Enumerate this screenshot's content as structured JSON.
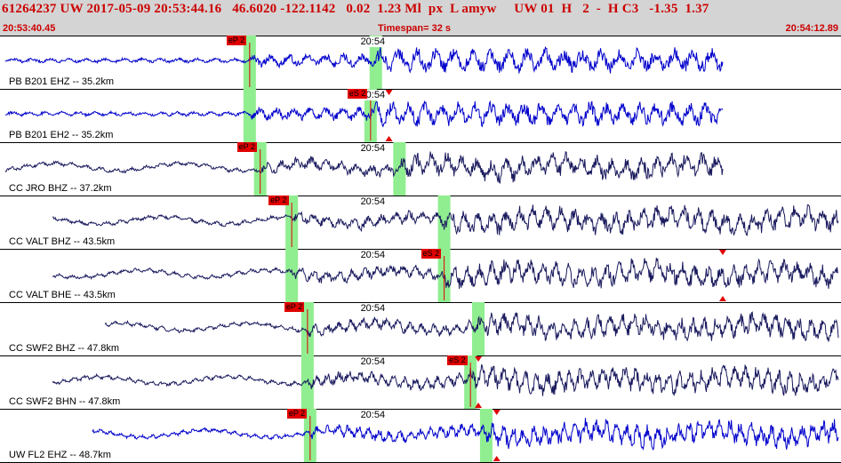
{
  "header": {
    "event_line": "61264237 UW 2017-05-09 20:53:44.16   46.6020 -122.1142   0.02  1.23 Ml  px  L amyw     UW 01  H   2  -  H C3   -1.35  1.37",
    "start_time": "20:53:40.45",
    "timespan": "Timespan=  32 s",
    "end_time": "20:54:12.89"
  },
  "colors": {
    "header_bg": "#d4d4d4",
    "header_text": "#cc0000",
    "trace_blue": "#0000cc",
    "trace_navy": "#1a1a5e",
    "pick_window": "#90ee90",
    "pick_marker": "#e00000"
  },
  "time_axis": {
    "start": "20:53:40.45",
    "end": "20:54:12.89",
    "duration_s": 32
  },
  "panels": [
    {
      "label": "PB B201 EHZ -- 35.2km",
      "tick": "20:54",
      "color": "blue",
      "picks": [
        {
          "label": "eP 2",
          "t": 9.5
        },
        {
          "label": "",
          "t": 14.3
        }
      ],
      "triangles": []
    },
    {
      "label": "PB B201 EH2 -- 35.2km",
      "tick": "20:54",
      "color": "blue",
      "picks": [
        {
          "label": "eS 2",
          "t": 14.1
        },
        {
          "label": "",
          "t": 9.5
        }
      ],
      "triangles": [
        14.8
      ]
    },
    {
      "label": "CC JRO BHZ -- 37.2km",
      "tick": "20:54",
      "color": "navy",
      "picks": [
        {
          "label": "eP 2",
          "t": 9.9
        },
        {
          "label": "",
          "t": 15.2
        }
      ],
      "triangles": []
    },
    {
      "label": "CC VALT BHZ -- 43.5km",
      "tick": "20:54",
      "color": "navy",
      "picks": [
        {
          "label": "eP 2",
          "t": 11.1
        },
        {
          "label": "",
          "t": 16.9
        }
      ],
      "triangles": []
    },
    {
      "label": "CC VALT BHE -- 43.5km",
      "tick": "20:54",
      "color": "navy",
      "picks": [
        {
          "label": "eS 2",
          "t": 16.9
        },
        {
          "label": "",
          "t": 11.1
        }
      ],
      "triangles": [
        27.5
      ]
    },
    {
      "label": "CC SWF2 BHZ -- 47.8km",
      "tick": "20:54",
      "color": "navy",
      "picks": [
        {
          "label": "eP 2",
          "t": 11.7
        },
        {
          "label": "",
          "t": 18.2
        }
      ],
      "triangles": []
    },
    {
      "label": "CC SWF2 BHN -- 47.8km",
      "tick": "20:54",
      "color": "navy",
      "picks": [
        {
          "label": "eS 2",
          "t": 17.9
        },
        {
          "label": "",
          "t": 11.7
        }
      ],
      "triangles": [
        18.2
      ]
    },
    {
      "label": "UW FL2 EHZ -- 48.7km",
      "tick": "20:54",
      "color": "blue",
      "picks": [
        {
          "label": "eP 2",
          "t": 11.8
        },
        {
          "label": "",
          "t": 18.5
        }
      ],
      "triangles": [
        18.9
      ]
    }
  ]
}
